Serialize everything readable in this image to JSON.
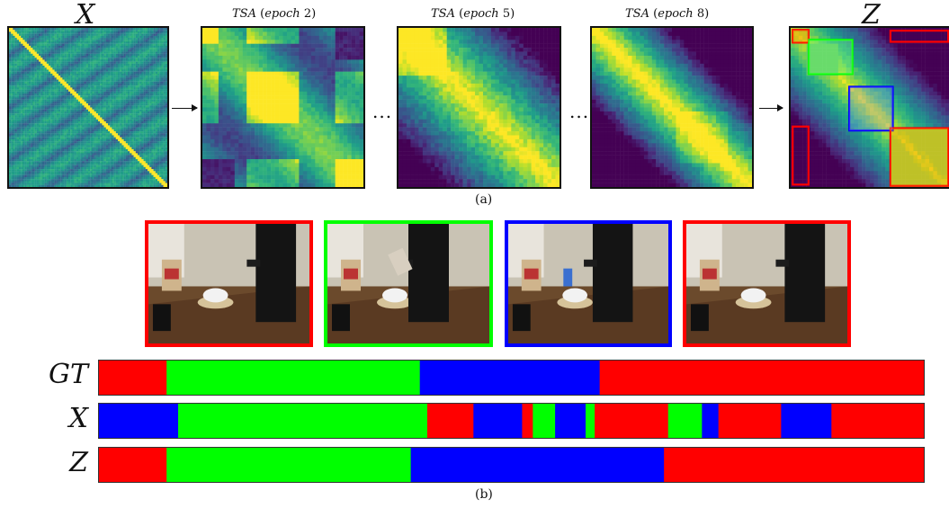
{
  "panel_a": {
    "x_title": "X",
    "tsa_prefix": "TSA",
    "epoch_word": "epoch",
    "epoch2": "2",
    "epoch5": "5",
    "epoch8": "8",
    "z_title": "Z",
    "dots": "...",
    "caption": "(a)"
  },
  "panel_b": {
    "caption": "(b)",
    "row_labels": [
      "GT",
      "X",
      "Z"
    ],
    "colors": {
      "red": "#ff0000",
      "green": "#00ff00",
      "blue": "#0000ff"
    },
    "frame_colors": [
      "red",
      "green",
      "blue",
      "red"
    ],
    "segments": {
      "GT": [
        [
          "red",
          0,
          0.082
        ],
        [
          "green",
          0.082,
          0.389
        ],
        [
          "blue",
          0.389,
          0.607
        ],
        [
          "red",
          0.607,
          1
        ]
      ],
      "X": [
        [
          "blue",
          0,
          0.096
        ],
        [
          "green",
          0.096,
          0.398
        ],
        [
          "red",
          0.398,
          0.454
        ],
        [
          "blue",
          0.454,
          0.513
        ],
        [
          "red",
          0.513,
          0.526
        ],
        [
          "green",
          0.526,
          0.553
        ],
        [
          "blue",
          0.553,
          0.59
        ],
        [
          "green",
          0.59,
          0.601
        ],
        [
          "red",
          0.601,
          0.69
        ],
        [
          "green",
          0.69,
          0.731
        ],
        [
          "blue",
          0.731,
          0.751
        ],
        [
          "red",
          0.751,
          0.827
        ],
        [
          "blue",
          0.827,
          0.888
        ],
        [
          "red",
          0.888,
          1
        ]
      ],
      "Z": [
        [
          "red",
          0,
          0.082
        ],
        [
          "green",
          0.082,
          0.378
        ],
        [
          "blue",
          0.378,
          0.685
        ],
        [
          "red",
          0.685,
          1
        ]
      ]
    }
  },
  "z_boxes": [
    {
      "color": "red"
    },
    {
      "color": "green"
    },
    {
      "color": "blue"
    },
    {
      "color": "red"
    },
    {
      "color": "red"
    },
    {
      "color": "red"
    }
  ]
}
